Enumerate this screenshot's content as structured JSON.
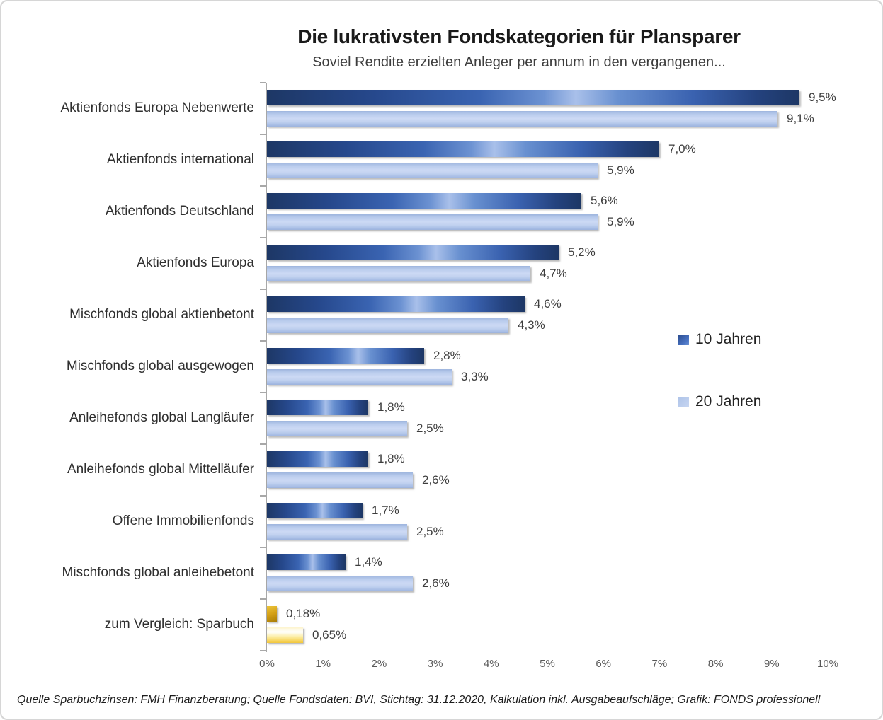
{
  "chart_data": {
    "type": "bar",
    "orientation": "horizontal",
    "title": "Die lukrativsten Fondskategorien für Plansparer",
    "subtitle": "Soviel Rendite erzielten Anleger per annum in den vergangenen...",
    "xlim": [
      0,
      10
    ],
    "x_ticks": [
      "0%",
      "1%",
      "2%",
      "3%",
      "4%",
      "5%",
      "6%",
      "7%",
      "8%",
      "9%",
      "10%"
    ],
    "grid": false,
    "legend_position": "right",
    "categories": [
      "Aktienfonds Europa Nebenwerte",
      "Aktienfonds international",
      "Aktienfonds Deutschland",
      "Aktienfonds Europa",
      "Mischfonds global aktienbetont",
      "Mischfonds global ausgewogen",
      "Anleihefonds global Langläufer",
      "Anleihefonds global Mittelläufer",
      "Offene Immobilienfonds",
      "Mischfonds global anleihebetont",
      "zum  Vergleich: Sparbuch"
    ],
    "series": [
      {
        "name": "10 Jahren",
        "color": "#2b4c8e",
        "values": [
          9.5,
          7.0,
          5.6,
          5.2,
          4.6,
          2.8,
          1.8,
          1.8,
          1.7,
          1.4,
          0.18
        ],
        "labels": [
          "9,5%",
          "7,0%",
          "5,6%",
          "5,2%",
          "4,6%",
          "2,8%",
          "1,8%",
          "1,8%",
          "1,7%",
          "1,4%",
          "0,18%"
        ]
      },
      {
        "name": "20 Jahren",
        "color": "#b4c7e7",
        "values": [
          9.1,
          5.9,
          5.9,
          4.7,
          4.3,
          3.3,
          2.5,
          2.6,
          2.5,
          2.6,
          0.65
        ],
        "labels": [
          "9,1%",
          "5,9%",
          "5,9%",
          "4,7%",
          "4,3%",
          "3,3%",
          "2,5%",
          "2,6%",
          "2,5%",
          "2,6%",
          "0,65%"
        ]
      }
    ],
    "comparison_row": "zum  Vergleich: Sparbuch",
    "comparison_row_color": "gold"
  },
  "footer": {
    "source": "Quelle Sparbuchzinsen: FMH Finanzberatung; Quelle Fondsdaten: BVI, Stichtag: 31.12.2020, Kalkulation inkl. Ausgabeaufschläge; Grafik: FONDS professionell"
  }
}
